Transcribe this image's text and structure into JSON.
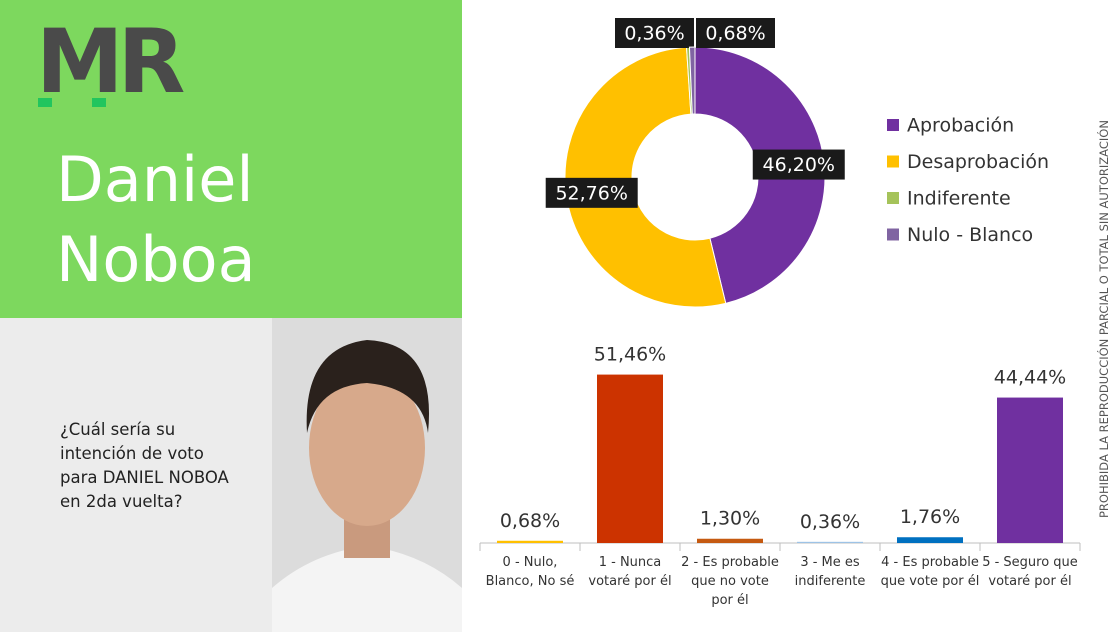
{
  "header": {
    "logo": "MR",
    "name": "Daniel Noboa",
    "question": "¿Cuál sería su intención de voto para DANIEL NOBOA en 2da vuelta?",
    "disclaimer": "PROHIBIDA LA REPRODUCCIÓN PARCIAL O TOTAL SIN AUTORIZACIÓN"
  },
  "chart_data": [
    {
      "type": "donut",
      "categories": [
        "Aprobación",
        "Desaprobación",
        "Indiferente",
        "Nulo - Blanco"
      ],
      "values": [
        46.2,
        52.76,
        0.36,
        0.68
      ],
      "value_labels": [
        "46,20%",
        "52,76%",
        "0,36%",
        "0,68%"
      ],
      "colors": [
        "#7030a0",
        "#ffc000",
        "#a5c35a",
        "#8064a2"
      ],
      "legend": "right"
    },
    {
      "type": "bar",
      "categories": [
        "0 - Nulo, Blanco, No sé",
        "1 - Nunca votaré por él",
        "2 - Es probable que no vote por él",
        "3 - Me es indiferente",
        "4 - Es probable que vote por él",
        "5 - Seguro que votaré por él"
      ],
      "values": [
        0.68,
        51.46,
        1.3,
        0.36,
        1.76,
        44.44
      ],
      "value_labels": [
        "0,68%",
        "51,46%",
        "1,30%",
        "0,36%",
        "1,76%",
        "44,44%"
      ],
      "colors": [
        "#ffc000",
        "#cc3300",
        "#c55a11",
        "#9dc3e6",
        "#0070c0",
        "#7030a0"
      ],
      "ylim": [
        0,
        55
      ]
    }
  ]
}
